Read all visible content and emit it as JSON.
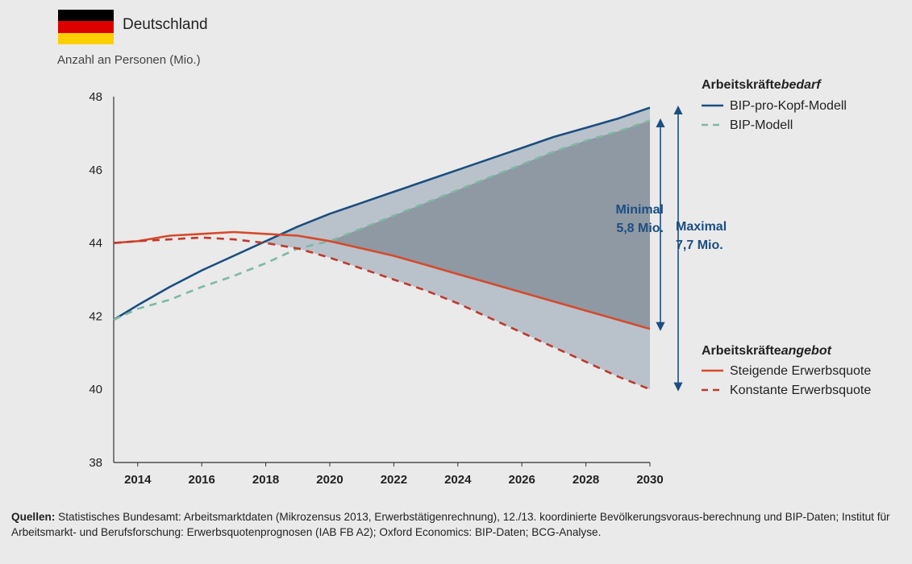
{
  "header": {
    "country": "Deutschland",
    "unit_label": "Anzahl an Personen (Mio.)",
    "flag_colors": [
      "#000000",
      "#dd0000",
      "#ffce00"
    ]
  },
  "chart_data": {
    "type": "line",
    "x_ticks": [
      2014,
      2016,
      2018,
      2020,
      2022,
      2024,
      2026,
      2028,
      2030
    ],
    "y_ticks": [
      38,
      40,
      42,
      44,
      46,
      48
    ],
    "xlim": [
      2013.25,
      2030
    ],
    "ylim": [
      38,
      48
    ],
    "grid": false,
    "legend": {
      "demand_header_plain": "Arbeitskräfte",
      "demand_header_italic": "bedarf",
      "supply_header_plain": "Arbeitskräfte",
      "supply_header_italic": "angebot"
    },
    "series": [
      {
        "name": "BIP-pro-Kopf-Modell",
        "color": "#1c4e80",
        "dash": "solid",
        "group": "demand",
        "x": [
          2013.25,
          2014,
          2015,
          2016,
          2017,
          2018,
          2019,
          2020,
          2021,
          2022,
          2023,
          2024,
          2025,
          2026,
          2027,
          2028,
          2029,
          2030
        ],
        "y": [
          41.9,
          42.3,
          42.8,
          43.25,
          43.65,
          44.05,
          44.45,
          44.8,
          45.1,
          45.4,
          45.7,
          46.0,
          46.3,
          46.6,
          46.9,
          47.15,
          47.4,
          47.7
        ]
      },
      {
        "name": "BIP-Modell",
        "color": "#7fb8a4",
        "dash": "dashed",
        "group": "demand",
        "x": [
          2013.25,
          2014,
          2015,
          2016,
          2017,
          2018,
          2019,
          2020,
          2021,
          2022,
          2023,
          2024,
          2025,
          2026,
          2027,
          2028,
          2029,
          2030
        ],
        "y": [
          41.9,
          42.2,
          42.45,
          42.8,
          43.1,
          43.45,
          43.85,
          44.05,
          44.4,
          44.75,
          45.1,
          45.45,
          45.8,
          46.15,
          46.5,
          46.8,
          47.05,
          47.35
        ]
      },
      {
        "name": "Steigende Erwerbsquote",
        "color": "#d64a2b",
        "dash": "solid",
        "group": "supply",
        "x": [
          2013.25,
          2014,
          2015,
          2016,
          2017,
          2018,
          2019,
          2020,
          2021,
          2022,
          2023,
          2024,
          2025,
          2026,
          2027,
          2028,
          2029,
          2030
        ],
        "y": [
          44.0,
          44.05,
          44.2,
          44.25,
          44.3,
          44.25,
          44.2,
          44.05,
          43.85,
          43.65,
          43.4,
          43.15,
          42.9,
          42.65,
          42.4,
          42.15,
          41.9,
          41.65
        ]
      },
      {
        "name": "Konstante Erwerbsquote",
        "color": "#c0392b",
        "dash": "dashed",
        "group": "supply",
        "x": [
          2013.25,
          2014,
          2015,
          2016,
          2017,
          2018,
          2019,
          2020,
          2021,
          2022,
          2023,
          2024,
          2025,
          2026,
          2027,
          2028,
          2029,
          2030
        ],
        "y": [
          44.0,
          44.05,
          44.1,
          44.15,
          44.1,
          44.0,
          43.85,
          43.6,
          43.3,
          43.0,
          42.7,
          42.35,
          41.95,
          41.55,
          41.15,
          40.75,
          40.35,
          40.0
        ]
      }
    ],
    "annotations": {
      "minimal_line1": "Minimal",
      "minimal_line2": "5,8 Mio.",
      "maximal_line1": "Maximal",
      "maximal_line2": "7,7 Mio."
    },
    "colors": {
      "gap_fill_outer": "#b9c2cb",
      "gap_fill_inner": "#8e99a4",
      "axis": "#333333",
      "arrow": "#1c4e80"
    }
  },
  "footer": {
    "sources_label": "Quellen:",
    "sources_text": "Statistisches Bundesamt: Arbeitsmarktdaten (Mikrozensus 2013, Erwerbstätigenrechnung), 12./13. koordinierte Bevölkerungsvoraus-berechnung und BIP-Daten; Institut für Arbeitsmarkt- und Berufsforschung: Erwerbsquotenprognosen (IAB FB A2); Oxford Economics: BIP-Daten; BCG-Analyse."
  }
}
